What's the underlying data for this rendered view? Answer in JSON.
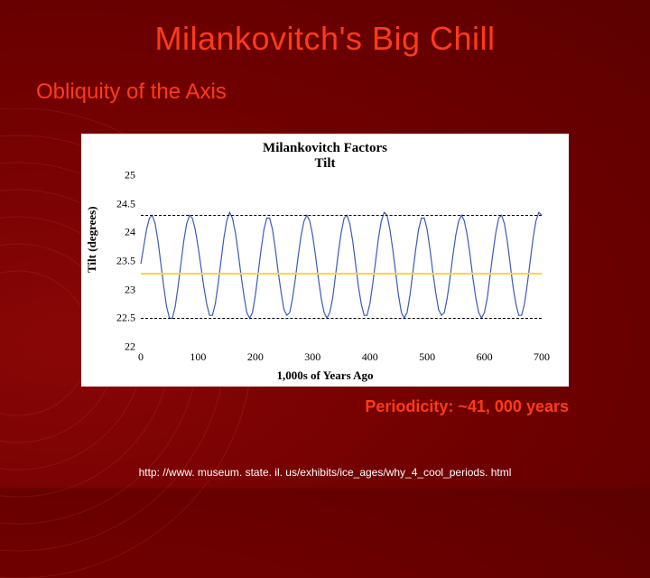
{
  "title": "Milankovitch's Big Chill",
  "subtitle": "Obliquity of the Axis",
  "periodicity": "Periodicity: ~41, 000 years",
  "source": "http: //www. museum. state. il. us/exhibits/ice_ages/why_4_cool_periods. html",
  "chart": {
    "type": "line",
    "title_line1": "Milankovitch Factors",
    "title_line2": "Tilt",
    "title_fontsize": 15,
    "xlabel": "1,000s of Years Ago",
    "ylabel": "Tilt (degrees)",
    "label_fontsize": 13,
    "xlim": [
      0,
      700
    ],
    "ylim": [
      22,
      25
    ],
    "xticks": [
      0,
      100,
      200,
      300,
      400,
      500,
      600,
      700
    ],
    "yticks": [
      22,
      22.5,
      23,
      23.5,
      24,
      24.5,
      25
    ],
    "background_color": "#ffffff",
    "line_color": "#3b5bb5",
    "line_width": 1.2,
    "mean_line_color": "#ffd24a",
    "mean_value": 23.3,
    "reference_lines": [
      22.5,
      24.3
    ],
    "reference_line_style": "dashed",
    "reference_line_color": "#000000",
    "tick_fontsize": 12,
    "x": [
      0,
      5,
      10,
      15,
      20,
      25,
      30,
      35,
      40,
      45,
      50,
      55,
      60,
      65,
      70,
      75,
      80,
      85,
      90,
      95,
      100,
      105,
      110,
      115,
      120,
      125,
      130,
      135,
      140,
      145,
      150,
      155,
      160,
      165,
      170,
      175,
      180,
      185,
      190,
      195,
      200,
      205,
      210,
      215,
      220,
      225,
      230,
      235,
      240,
      245,
      250,
      255,
      260,
      265,
      270,
      275,
      280,
      285,
      290,
      295,
      300,
      305,
      310,
      315,
      320,
      325,
      330,
      335,
      340,
      345,
      350,
      355,
      360,
      365,
      370,
      375,
      380,
      385,
      390,
      395,
      400,
      405,
      410,
      415,
      420,
      425,
      430,
      435,
      440,
      445,
      450,
      455,
      460,
      465,
      470,
      475,
      480,
      485,
      490,
      495,
      500,
      505,
      510,
      515,
      520,
      525,
      530,
      535,
      540,
      545,
      550,
      555,
      560,
      565,
      570,
      575,
      580,
      585,
      590,
      595,
      600,
      605,
      610,
      615,
      620,
      625,
      630,
      635,
      640,
      645,
      650,
      655,
      660,
      665,
      670,
      675,
      680,
      685,
      690,
      695,
      700
    ],
    "y": [
      23.45,
      23.75,
      24.05,
      24.25,
      24.3,
      24.15,
      23.85,
      23.45,
      23.05,
      22.7,
      22.5,
      22.5,
      22.7,
      23.05,
      23.45,
      23.85,
      24.15,
      24.3,
      24.25,
      24.05,
      23.75,
      23.4,
      23.05,
      22.75,
      22.55,
      22.55,
      22.75,
      23.1,
      23.5,
      23.9,
      24.2,
      24.35,
      24.25,
      24.0,
      23.65,
      23.25,
      22.9,
      22.6,
      22.5,
      22.6,
      22.9,
      23.3,
      23.7,
      24.05,
      24.25,
      24.25,
      24.05,
      23.7,
      23.3,
      22.95,
      22.65,
      22.55,
      22.6,
      22.85,
      23.2,
      23.6,
      23.95,
      24.2,
      24.3,
      24.2,
      23.95,
      23.6,
      23.2,
      22.85,
      22.6,
      22.5,
      22.6,
      22.85,
      23.25,
      23.65,
      24.0,
      24.25,
      24.3,
      24.15,
      23.85,
      23.45,
      23.05,
      22.75,
      22.55,
      22.55,
      22.75,
      23.1,
      23.5,
      23.9,
      24.2,
      24.35,
      24.3,
      24.05,
      23.7,
      23.3,
      22.9,
      22.6,
      22.5,
      22.6,
      22.9,
      23.3,
      23.7,
      24.05,
      24.25,
      24.25,
      24.05,
      23.7,
      23.3,
      22.95,
      22.65,
      22.55,
      22.6,
      22.85,
      23.2,
      23.6,
      23.95,
      24.2,
      24.3,
      24.2,
      23.95,
      23.6,
      23.2,
      22.85,
      22.6,
      22.5,
      22.6,
      22.85,
      23.25,
      23.65,
      24.0,
      24.25,
      24.3,
      24.15,
      23.85,
      23.45,
      23.05,
      22.75,
      22.55,
      22.55,
      22.75,
      23.1,
      23.5,
      23.9,
      24.2,
      24.35,
      24.3
    ]
  },
  "colors": {
    "slide_bg": "#7a0000",
    "accent": "#ff3a1a",
    "white": "#ffffff"
  }
}
